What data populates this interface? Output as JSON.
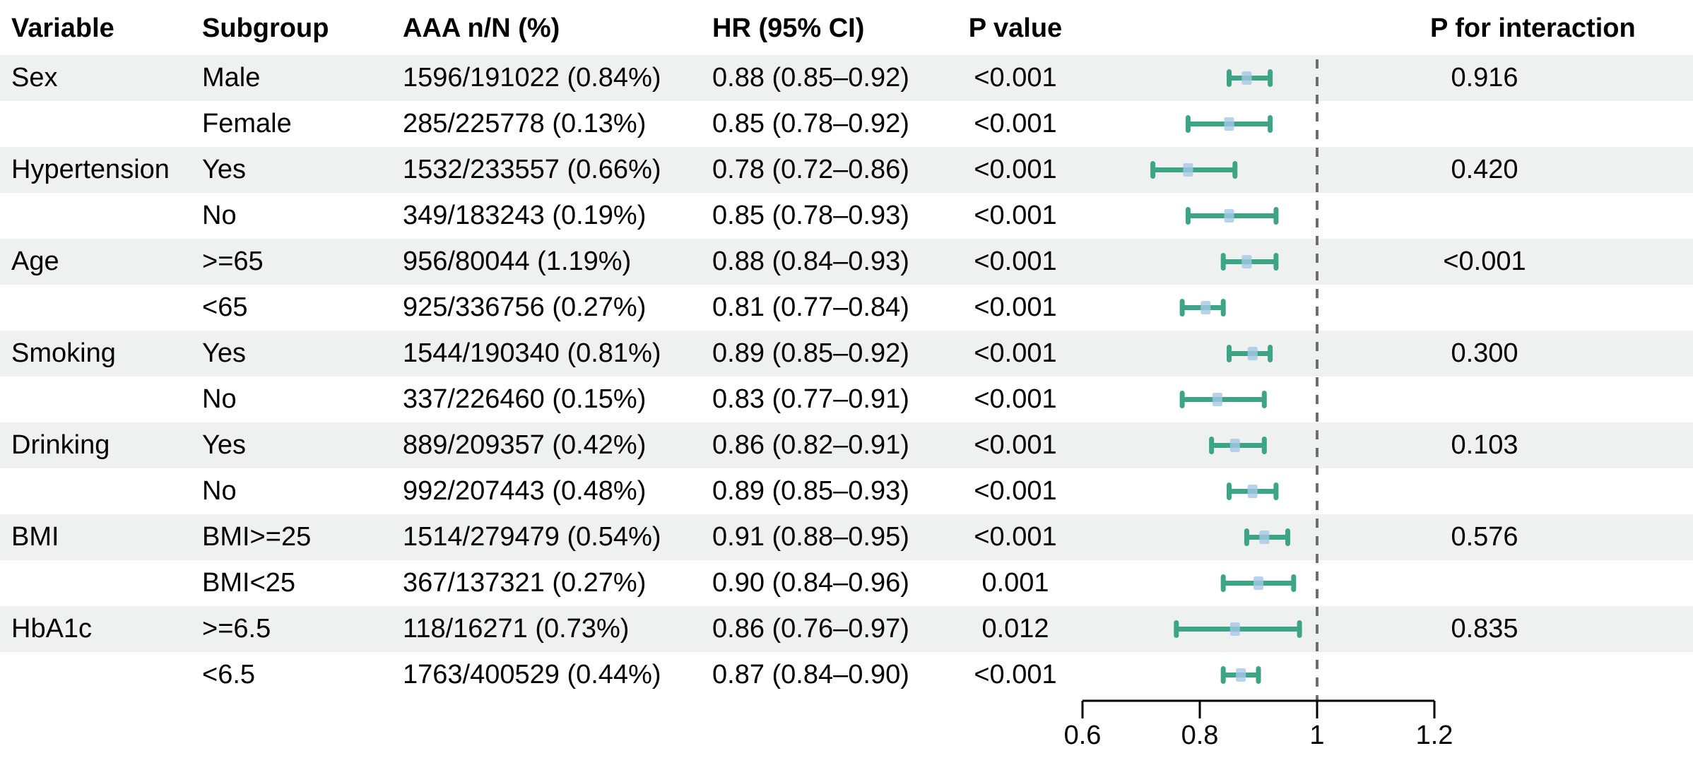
{
  "table": {
    "headers": {
      "variable": "Variable",
      "subgroup": "Subgroup",
      "aaa": "AAA n/N (%)",
      "hr": "HR (95% CI)",
      "p_value": "P value",
      "p_interaction": "P for interaction"
    },
    "rows": [
      {
        "variable": "Sex",
        "subgroup": "Male",
        "aaa": "1596/191022 (0.84%)",
        "hr": "0.88 (0.85–0.92)",
        "p": "<0.001",
        "p_interaction": "0.916"
      },
      {
        "variable": "",
        "subgroup": "Female",
        "aaa": "285/225778 (0.13%)",
        "hr": "0.85 (0.78–0.92)",
        "p": "<0.001",
        "p_interaction": ""
      },
      {
        "variable": "Hypertension",
        "subgroup": "Yes",
        "aaa": "1532/233557 (0.66%)",
        "hr": "0.78 (0.72–0.86)",
        "p": "<0.001",
        "p_interaction": "0.420"
      },
      {
        "variable": "",
        "subgroup": "No",
        "aaa": "349/183243 (0.19%)",
        "hr": "0.85 (0.78–0.93)",
        "p": "<0.001",
        "p_interaction": ""
      },
      {
        "variable": "Age",
        "subgroup": ">=65",
        "aaa": "956/80044 (1.19%)",
        "hr": "0.88 (0.84–0.93)",
        "p": "<0.001",
        "p_interaction": "<0.001"
      },
      {
        "variable": "",
        "subgroup": "<65",
        "aaa": "925/336756 (0.27%)",
        "hr": "0.81 (0.77–0.84)",
        "p": "<0.001",
        "p_interaction": ""
      },
      {
        "variable": "Smoking",
        "subgroup": "Yes",
        "aaa": "1544/190340 (0.81%)",
        "hr": "0.89 (0.85–0.92)",
        "p": "<0.001",
        "p_interaction": "0.300"
      },
      {
        "variable": "",
        "subgroup": "No",
        "aaa": "337/226460 (0.15%)",
        "hr": "0.83 (0.77–0.91)",
        "p": "<0.001",
        "p_interaction": ""
      },
      {
        "variable": "Drinking",
        "subgroup": "Yes",
        "aaa": "889/209357 (0.42%)",
        "hr": "0.86 (0.82–0.91)",
        "p": "<0.001",
        "p_interaction": "0.103"
      },
      {
        "variable": "",
        "subgroup": "No",
        "aaa": "992/207443 (0.48%)",
        "hr": "0.89 (0.85–0.93)",
        "p": "<0.001",
        "p_interaction": ""
      },
      {
        "variable": "BMI",
        "subgroup": "BMI>=25",
        "aaa": "1514/279479 (0.54%)",
        "hr": "0.91 (0.88–0.95)",
        "p": "<0.001",
        "p_interaction": "0.576"
      },
      {
        "variable": "",
        "subgroup": "BMI<25",
        "aaa": "367/137321 (0.27%)",
        "hr": "0.90 (0.84–0.96)",
        "p": "0.001",
        "p_interaction": ""
      },
      {
        "variable": "HbA1c",
        "subgroup": ">=6.5",
        "aaa": "118/16271 (0.73%)",
        "hr": "0.86 (0.76–0.97)",
        "p": "0.012",
        "p_interaction": "0.835"
      },
      {
        "variable": "",
        "subgroup": "<6.5",
        "aaa": "1763/400529 (0.44%)",
        "hr": "0.87 (0.84–0.90)",
        "p": "<0.001",
        "p_interaction": ""
      }
    ]
  },
  "chart_data": {
    "type": "forest",
    "x_axis": {
      "range": [
        0.6,
        1.2
      ],
      "ticks": [
        {
          "value": 0.6,
          "label": "0.6"
        },
        {
          "value": 0.8,
          "label": "0.8"
        },
        {
          "value": 1.0,
          "label": "1"
        },
        {
          "value": 1.2,
          "label": "1.2"
        }
      ],
      "reference_line": 1.0
    },
    "series": [
      {
        "variable": "Sex",
        "subgroup": "Male",
        "est": 0.88,
        "lo": 0.85,
        "hi": 0.92
      },
      {
        "variable": "Sex",
        "subgroup": "Female",
        "est": 0.85,
        "lo": 0.78,
        "hi": 0.92
      },
      {
        "variable": "Hypertension",
        "subgroup": "Yes",
        "est": 0.78,
        "lo": 0.72,
        "hi": 0.86
      },
      {
        "variable": "Hypertension",
        "subgroup": "No",
        "est": 0.85,
        "lo": 0.78,
        "hi": 0.93
      },
      {
        "variable": "Age",
        "subgroup": ">=65",
        "est": 0.88,
        "lo": 0.84,
        "hi": 0.93
      },
      {
        "variable": "Age",
        "subgroup": "<65",
        "est": 0.81,
        "lo": 0.77,
        "hi": 0.84
      },
      {
        "variable": "Smoking",
        "subgroup": "Yes",
        "est": 0.89,
        "lo": 0.85,
        "hi": 0.92
      },
      {
        "variable": "Smoking",
        "subgroup": "No",
        "est": 0.83,
        "lo": 0.77,
        "hi": 0.91
      },
      {
        "variable": "Drinking",
        "subgroup": "Yes",
        "est": 0.86,
        "lo": 0.82,
        "hi": 0.91
      },
      {
        "variable": "Drinking",
        "subgroup": "No",
        "est": 0.89,
        "lo": 0.85,
        "hi": 0.93
      },
      {
        "variable": "BMI",
        "subgroup": "BMI>=25",
        "est": 0.91,
        "lo": 0.88,
        "hi": 0.95
      },
      {
        "variable": "BMI",
        "subgroup": "BMI<25",
        "est": 0.9,
        "lo": 0.84,
        "hi": 0.96
      },
      {
        "variable": "HbA1c",
        "subgroup": ">=6.5",
        "est": 0.86,
        "lo": 0.76,
        "hi": 0.97
      },
      {
        "variable": "HbA1c",
        "subgroup": "<6.5",
        "est": 0.87,
        "lo": 0.84,
        "hi": 0.9
      }
    ]
  },
  "colors": {
    "error_bar": "#3ca586",
    "marker": "#a5c8e6",
    "row_shade": "#eef1f0",
    "reference_line": "#6e6e6e",
    "axis": "#000000",
    "text": "#000000"
  }
}
